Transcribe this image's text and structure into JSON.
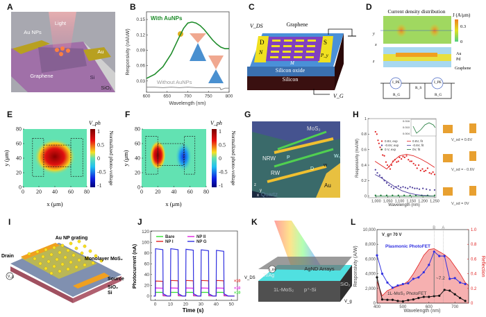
{
  "panel_labels": {
    "A": "A",
    "B": "B",
    "C": "C",
    "D": "D",
    "E": "E",
    "F": "F",
    "G": "G",
    "H": "H",
    "I": "I",
    "J": "J",
    "K": "K",
    "L": "L"
  },
  "A": {
    "light": "Light",
    "au_nps": "Au NPs",
    "au": "Au",
    "graphene": "Graphene",
    "si": "Si",
    "sio2": "SiO₂"
  },
  "C": {
    "vds": "V_DS",
    "graphene": "Graphene",
    "d": "D",
    "n": "N",
    "s": "S",
    "py": "P_y",
    "m": "M",
    "oxide": "Silicon oxide",
    "silicon": "Silicon",
    "vg": "V_G"
  },
  "D": {
    "title": "Current density distribution",
    "cbar_label": "J (A/μm)",
    "cbar_max": "0.3",
    "cbar_min": "0",
    "au": "Au",
    "pd": "Pd",
    "graphene": "Graphene",
    "axis_y": "y",
    "axis_x": "x",
    "axis_z": "z",
    "ipe": "I_PE",
    "rg": "R_G",
    "rs": "R_S"
  },
  "G": {
    "mos2": "MoS₂",
    "nrw": "NRW",
    "p": "P",
    "w1": "W₁",
    "w": "w",
    "d": "D",
    "rw": "RW",
    "au": "Au",
    "quartz": "Quartz",
    "x": "x",
    "y": "y",
    "z": "z"
  },
  "H_diagrams": {
    "v1": "V_sd = 0.6V",
    "v2": "V_sd = - 0.6V",
    "v3": "V_sd = 0V",
    "rw": "RW",
    "nrw": "NRW"
  },
  "I": {
    "grating": "Au NP grating",
    "drain": "Drain",
    "mos2": "Monolayer MoS₂",
    "source": "Source",
    "sio2": "SiO₂",
    "si": "Si",
    "vg": "V_g"
  },
  "K": {
    "arrays": "AgND Arrays",
    "tiag": "Ti/Ag",
    "sio2": "SiO₂",
    "mos2": "1L-MoS₂",
    "psi": "p⁺-Si",
    "vg": "V_g",
    "vds": "V_DS",
    "ids": "I_DS"
  },
  "colors": {
    "green": "#1e8c2a",
    "red": "#e02020",
    "blue": "#3030e0",
    "purple": "#4a3a9a",
    "magenta": "#e020e0",
    "lgreen": "#30e030",
    "pink": "#f6b0b0"
  },
  "chart_data": [
    {
      "id": "B",
      "type": "line",
      "xlabel": "Wavelength (nm)",
      "ylabel": "Responsivity  (nA/uW)",
      "xlim": [
        600,
        800
      ],
      "ylim": [
        0.008,
        0.165
      ],
      "xticks": [
        600,
        650,
        700,
        750,
        800
      ],
      "xtick_labels": [
        "600",
        "650",
        "700",
        "750",
        "800"
      ],
      "yticks": [
        0.03,
        0.06,
        0.09,
        0.12,
        0.15
      ],
      "ytick_labels": [
        "0.03",
        "0.06",
        "0.09",
        "0.12",
        "0.15"
      ],
      "series": [
        {
          "name": "With AuNPs",
          "color": "#1e8c2a",
          "x": [
            600,
            620,
            640,
            660,
            680,
            690,
            700,
            710,
            720,
            730,
            740,
            750,
            760,
            770,
            780,
            790,
            800
          ],
          "y": [
            0.035,
            0.043,
            0.058,
            0.083,
            0.117,
            0.133,
            0.143,
            0.145,
            0.143,
            0.138,
            0.13,
            0.12,
            0.11,
            0.102,
            0.096,
            0.093,
            0.093
          ]
        },
        {
          "name": "Without AuNPs",
          "color": "#888888",
          "x": [
            600,
            620,
            640,
            660,
            680,
            700,
            720,
            740,
            760,
            778,
            780,
            790,
            800
          ],
          "y": [
            0.018,
            0.018,
            0.017,
            0.018,
            0.017,
            0.018,
            0.017,
            0.017,
            0.017,
            0.017,
            0.013,
            0.016,
            0.016
          ]
        }
      ]
    },
    {
      "id": "E",
      "type": "heatmap",
      "xlabel": "x (μm)",
      "ylabel": "y (μm)",
      "xlim": [
        0,
        80
      ],
      "ylim": [
        0,
        80
      ],
      "xticks": [
        0,
        20,
        40,
        60,
        80
      ],
      "yticks": [
        0,
        20,
        40,
        60,
        80
      ],
      "colorbar_title": "V_ph",
      "colorbar_label": "Normalized photo-voltage",
      "colorbar_ticks": [
        "1",
        "0.5",
        "0",
        "-0.5",
        "-1"
      ],
      "hotspots": [
        {
          "x": 40,
          "y": 42,
          "value": 1
        }
      ]
    },
    {
      "id": "F",
      "type": "heatmap",
      "xlabel": "x (μm)",
      "ylabel": "y (μm)",
      "xlim": [
        0,
        80
      ],
      "ylim": [
        0,
        80
      ],
      "xticks": [
        0,
        20,
        40,
        60,
        80
      ],
      "yticks": [
        0,
        20,
        40,
        60,
        80
      ],
      "colorbar_title": "V_ph",
      "colorbar_label": "Normalized photo-voltage",
      "colorbar_ticks": [
        "1",
        "0.5",
        "0",
        "-0.5",
        "-1"
      ],
      "hotspots": [
        {
          "x": 20,
          "y": 44,
          "value": 1
        },
        {
          "x": 52,
          "y": 42,
          "value": -0.8
        }
      ]
    },
    {
      "id": "H",
      "type": "scatter",
      "xlabel": "Wavelength (nm)",
      "ylabel": "Responsivity (mA/W)",
      "xlim": [
        965,
        1256
      ],
      "ylim": [
        -0.02,
        1
      ],
      "xticks": [
        1000,
        1050,
        1100,
        1150,
        1200,
        1250
      ],
      "xtick_labels": [
        "1,000",
        "1,050",
        "1,100",
        "1,150",
        "1,200",
        "1,250"
      ],
      "yticks": [
        0,
        0.2,
        0.4,
        0.6,
        0.8,
        1
      ],
      "ytick_labels": [
        "0",
        "0.2",
        "0.4",
        "0.6",
        "0.8",
        "1"
      ],
      "inset_ytick_labels": [
        "0.016",
        "0.010",
        "0.004"
      ],
      "series": [
        {
          "name": "0.6V, exp",
          "kind": "points",
          "color": "#e02020",
          "points": [
            [
              997,
              0.83
            ],
            [
              1003,
              0.8
            ],
            [
              1008,
              0.72
            ],
            [
              1012,
              0.68
            ],
            [
              1017,
              0.63
            ],
            [
              1022,
              0.6
            ],
            [
              1028,
              0.53
            ],
            [
              1035,
              0.52
            ],
            [
              1042,
              0.44
            ],
            [
              1048,
              0.4
            ],
            [
              1055,
              0.38
            ],
            [
              1060,
              0.35
            ],
            [
              1066,
              0.4
            ],
            [
              1072,
              0.45
            ],
            [
              1080,
              0.47
            ],
            [
              1088,
              0.44
            ],
            [
              1095,
              0.45
            ],
            [
              1100,
              0.5
            ],
            [
              1108,
              0.48
            ],
            [
              1115,
              0.51
            ],
            [
              1122,
              0.5
            ],
            [
              1130,
              0.52
            ],
            [
              1138,
              0.47
            ],
            [
              1145,
              0.45
            ],
            [
              1152,
              0.45
            ],
            [
              1160,
              0.42
            ],
            [
              1168,
              0.4
            ],
            [
              1175,
              0.36
            ],
            [
              1182,
              0.4
            ],
            [
              1190,
              0.33
            ],
            [
              1198,
              0.35
            ],
            [
              1205,
              0.32
            ],
            [
              1212,
              0.33
            ],
            [
              1220,
              0.36
            ],
            [
              1228,
              0.3
            ],
            [
              1236,
              0.29
            ],
            [
              1243,
              0.31
            ],
            [
              1250,
              0.28
            ]
          ]
        },
        {
          "name": "-0.6V, exp",
          "kind": "points",
          "color": "#4a3a9a",
          "points": [
            [
              997,
              0.34
            ],
            [
              1005,
              0.3
            ],
            [
              1015,
              0.27
            ],
            [
              1025,
              0.24
            ],
            [
              1035,
              0.2
            ],
            [
              1045,
              0.17
            ],
            [
              1055,
              0.14
            ],
            [
              1065,
              0.12
            ],
            [
              1075,
              0.1
            ],
            [
              1085,
              0.12
            ],
            [
              1095,
              0.13
            ],
            [
              1105,
              0.11
            ],
            [
              1115,
              0.12
            ],
            [
              1125,
              0.11
            ],
            [
              1135,
              0.1
            ],
            [
              1145,
              0.12
            ],
            [
              1155,
              0.11
            ],
            [
              1165,
              0.1
            ],
            [
              1175,
              0.1
            ],
            [
              1185,
              0.09
            ],
            [
              1200,
              0.1
            ],
            [
              1215,
              0.09
            ],
            [
              1230,
              0.08
            ],
            [
              1250,
              0.08
            ]
          ]
        },
        {
          "name": "0 V, exp",
          "kind": "points",
          "color": "#1e7a3a",
          "points": [
            [
              997,
              0.01
            ],
            [
              1020,
              0.01
            ],
            [
              1045,
              0.01
            ],
            [
              1070,
              0.01
            ],
            [
              1095,
              0.01
            ],
            [
              1120,
              0.01
            ],
            [
              1145,
              0.01
            ],
            [
              1170,
              0.01
            ],
            [
              1195,
              0.01
            ],
            [
              1220,
              0.01
            ],
            [
              1250,
              0.01
            ]
          ]
        },
        {
          "name": "0.6V, fit",
          "kind": "line",
          "color": "#e02020",
          "points": [
            [
              995,
              0.45
            ],
            [
              1020,
              0.4
            ],
            [
              1045,
              0.35
            ],
            [
              1060,
              0.4
            ],
            [
              1080,
              0.47
            ],
            [
              1100,
              0.52
            ],
            [
              1130,
              0.54
            ],
            [
              1160,
              0.52
            ],
            [
              1190,
              0.48
            ],
            [
              1220,
              0.43
            ],
            [
              1250,
              0.37
            ]
          ]
        },
        {
          "name": "-0.6V, fit",
          "kind": "line",
          "color": "#4a3a9a",
          "points": [
            [
              995,
              0.28
            ],
            [
              1020,
              0.24
            ],
            [
              1050,
              0.18
            ],
            [
              1080,
              0.12
            ],
            [
              1110,
              0.07
            ],
            [
              1140,
              0.04
            ],
            [
              1170,
              0.02
            ],
            [
              1200,
              0.01
            ],
            [
              1250,
              0.0
            ]
          ]
        },
        {
          "name": "0V, fit",
          "kind": "line",
          "color": "#1e7a3a",
          "points": [
            [
              995,
              0
            ],
            [
              1250,
              0
            ]
          ]
        }
      ]
    },
    {
      "id": "J",
      "type": "line",
      "xlabel": "Time (s)",
      "ylabel": "Photocurrent (nA)",
      "xlim": [
        -3,
        54
      ],
      "ylim": [
        -8,
        121
      ],
      "xticks": [
        0,
        10,
        20,
        30,
        40,
        50
      ],
      "xtick_labels": [
        "0",
        "10",
        "20",
        "30",
        "40",
        "50"
      ],
      "yticks": [
        0,
        20,
        40,
        60,
        80,
        100,
        120
      ],
      "ytick_labels": [
        "0",
        "20",
        "40",
        "60",
        "80",
        "100",
        "120"
      ],
      "on_intervals": [
        [
          0,
          5
        ],
        [
          10,
          15
        ],
        [
          20,
          25
        ],
        [
          30,
          35
        ],
        [
          40,
          45
        ]
      ],
      "series": [
        {
          "name": "Bare",
          "color": "#30e030",
          "on": [
            7,
            7,
            7,
            7,
            7
          ],
          "multiplier": "×10"
        },
        {
          "name": "NP I",
          "color": "#e02020",
          "on": [
            28,
            29,
            29,
            29,
            29
          ],
          "multiplier": "×10"
        },
        {
          "name": "NP II",
          "color": "#e020e0",
          "on": [
            15,
            15,
            15,
            15,
            15
          ],
          "multiplier": "×10"
        },
        {
          "name": "NP G",
          "color": "#3030e0",
          "on": [
            88,
            88,
            87,
            86,
            85
          ],
          "multiplier": ""
        }
      ]
    },
    {
      "id": "L",
      "type": "line",
      "xlabel": "Wavelength (nm)",
      "ylabel": "Responsivity (A/W)",
      "y2label": "Reflection",
      "xlim": [
        400,
        753
      ],
      "ylim": [
        0,
        10000
      ],
      "y2lim": [
        0,
        1
      ],
      "xticks": [
        400,
        500,
        600,
        700
      ],
      "xtick_labels": [
        "400",
        "500",
        "600",
        "700"
      ],
      "yticks": [
        0,
        2000,
        4000,
        6000,
        8000,
        10000
      ],
      "ytick_labels": [
        "0",
        "2,000",
        "4,000",
        "6,000",
        "8,000",
        "10,000"
      ],
      "y2ticks": [
        0,
        0.2,
        0.4,
        0.6,
        0.8,
        1
      ],
      "y2tick_labels": [
        "0",
        "0.2",
        "0.4",
        "0.6",
        "0.8",
        "1.0"
      ],
      "annotation_vg": "V_g= 70 V",
      "annotation_ratio": "~7.2",
      "markers": [
        {
          "label": "B",
          "x": 620
        },
        {
          "label": "A",
          "x": 655
        }
      ],
      "series": [
        {
          "name": "Plasmonic PhotoFET",
          "color": "#3030e0",
          "x": [
            400,
            420,
            440,
            460,
            480,
            500,
            520,
            540,
            560,
            580,
            600,
            620,
            640,
            660,
            680,
            700,
            720,
            740
          ],
          "y": [
            6500,
            4000,
            2800,
            2100,
            2400,
            2600,
            2700,
            3300,
            3500,
            4200,
            5200,
            7000,
            6400,
            6400,
            3300,
            3400,
            2800,
            2600
          ]
        },
        {
          "name": "1L-MoS₂ PhotoFET",
          "color": "#111111",
          "x": [
            400,
            420,
            440,
            460,
            480,
            500,
            520,
            540,
            560,
            580,
            600,
            620,
            640,
            660,
            680,
            700,
            720,
            740
          ],
          "y": [
            3500,
            500,
            450,
            450,
            300,
            250,
            400,
            500,
            700,
            850,
            850,
            950,
            1000,
            1800,
            1700,
            1200,
            700,
            300
          ]
        },
        {
          "name": "Reflection",
          "axis": "right",
          "color": "#e02020",
          "x": [
            400,
            410,
            420,
            440,
            460,
            480,
            500,
            520,
            540,
            560,
            580,
            600,
            620,
            640,
            660,
            680,
            700,
            720,
            740,
            753
          ],
          "y": [
            0.3,
            0.2,
            0.1,
            0.17,
            0.2,
            0.23,
            0.25,
            0.3,
            0.4,
            0.52,
            0.65,
            0.73,
            0.74,
            0.7,
            0.66,
            0.6,
            0.5,
            0.4,
            0.28,
            0.24
          ]
        }
      ]
    }
  ]
}
